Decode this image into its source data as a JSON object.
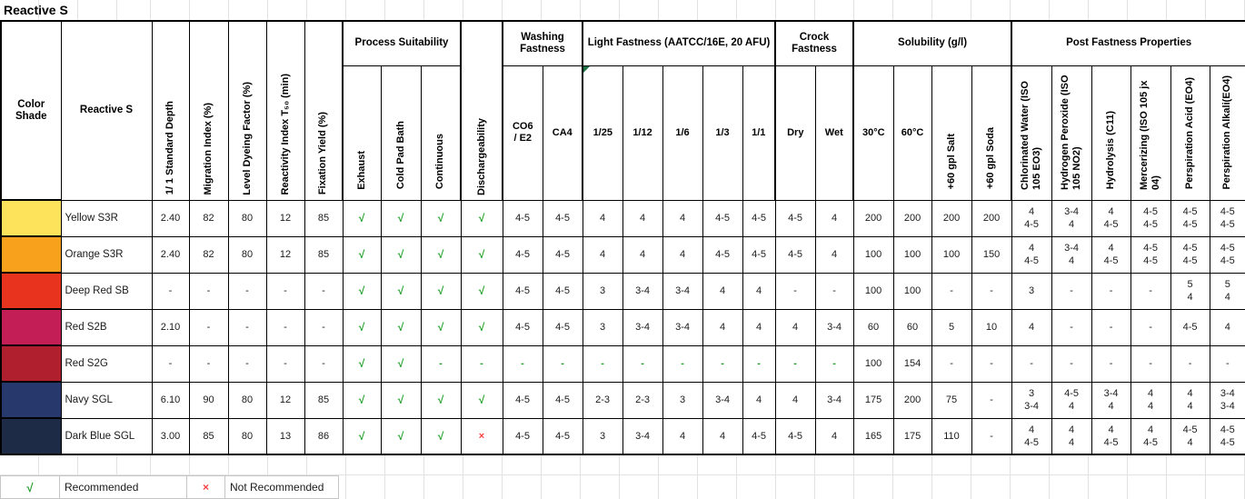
{
  "title": "Reactive S",
  "colors": {
    "check_green": "#22A02C",
    "x_red": "#F93E3E",
    "comment_triangle_green": "#1E7145",
    "gridline_gray": "#E2E2E2"
  },
  "icons": {
    "comment_indicator": "green triangle, top-left of 1/25 header cell"
  },
  "header": {
    "color_shade": "Color Shade",
    "reactive_s": "Reactive S",
    "metric_cols": [
      "1/ 1 Standard Depth",
      "Migration Index (%)",
      "Level Dyeing Factor (%)",
      "Reactivity Index T₅₀  (min)",
      "Fixation Yield (%)"
    ],
    "groups": {
      "process": {
        "label": "Process Suitability",
        "subs": [
          "Exhaust",
          "Cold Pad Bath",
          "Continuous"
        ]
      },
      "dischargeability": "Dischargeability",
      "washing": {
        "label": "Washing Fastness",
        "subs": [
          "CO6\n/ E2",
          "CA4"
        ]
      },
      "light": {
        "label": "Light Fastness (AATCC/16E, 20 AFU)",
        "subs": [
          "1/25",
          "1/12",
          "1/6",
          "1/3",
          "1/1"
        ]
      },
      "crock": {
        "label": "Crock Fastness",
        "subs": [
          "Dry",
          "Wet"
        ]
      },
      "solubility": {
        "label": "Solubility (g/l)",
        "subs": [
          "30°C",
          "60°C",
          "+60 gpl Salt",
          "+60 gpl Soda"
        ]
      },
      "post": {
        "label": "Post Fastness Properties",
        "subs": [
          "Chlorinated Water (ISO 105 EO3)",
          "Hydrogen Peroxide (ISO 105 NO2)",
          "Hydrolysis (C11)",
          "Mercerizing (ISO 105 jx 04)",
          "Perspiration Acid (EO4)",
          "Perspiration Alkali(EO4)"
        ]
      }
    }
  },
  "rows": [
    {
      "shade": "#FDE35B",
      "name": "Yellow S3R",
      "metrics": [
        "2.40",
        "82",
        "80",
        "12",
        "85"
      ],
      "suitability": [
        "√",
        "√",
        "√",
        "√"
      ],
      "fastness": [
        "4-5",
        "4-5",
        "4",
        "4",
        "4",
        "4-5",
        "4-5",
        "4-5",
        "4"
      ],
      "solubility": [
        "200",
        "200",
        "200",
        "200"
      ],
      "post": [
        "4\n4-5",
        "3-4\n4",
        "4\n4-5",
        "4-5\n4-5",
        "4-5\n4-5",
        "4-5\n4-5"
      ]
    },
    {
      "shade": "#F7A11C",
      "name": "Orange S3R",
      "metrics": [
        "2.40",
        "82",
        "80",
        "12",
        "85"
      ],
      "suitability": [
        "√",
        "√",
        "√",
        "√"
      ],
      "fastness": [
        "4-5",
        "4-5",
        "4",
        "4",
        "4",
        "4-5",
        "4-5",
        "4-5",
        "4"
      ],
      "solubility": [
        "100",
        "100",
        "100",
        "150"
      ],
      "post": [
        "4\n4-5",
        "3-4\n4",
        "4\n4-5",
        "4-5\n4-5",
        "4-5\n4-5",
        "4-5\n4-5"
      ]
    },
    {
      "shade": "#E8331F",
      "name": "Deep Red SB",
      "metrics": [
        "-",
        "-",
        "-",
        "-",
        "-"
      ],
      "suitability": [
        "√",
        "√",
        "√",
        "√"
      ],
      "fastness": [
        "4-5",
        "4-5",
        "3",
        "3-4",
        "3-4",
        "4",
        "4",
        "-",
        "-"
      ],
      "solubility": [
        "100",
        "100",
        "-",
        "-"
      ],
      "post": [
        "3",
        "-",
        "-",
        "-",
        "5\n4",
        "5\n4"
      ]
    },
    {
      "shade": "#C31E55",
      "name": "Red S2B",
      "metrics": [
        "2.10",
        "-",
        "-",
        "-",
        "-"
      ],
      "suitability": [
        "√",
        "√",
        "√",
        "√"
      ],
      "fastness": [
        "4-5",
        "4-5",
        "3",
        "3-4",
        "3-4",
        "4",
        "4",
        "4",
        "3-4"
      ],
      "solubility": [
        "60",
        "60",
        "5",
        "10"
      ],
      "post": [
        "4",
        "-",
        "-",
        "-",
        "4-5",
        "4"
      ]
    },
    {
      "shade": "#B01F2E",
      "name": "Red S2G",
      "metrics": [
        "-",
        "-",
        "-",
        "-",
        "-"
      ],
      "suitability": [
        "√",
        "√",
        {
          "v": "-",
          "green": true
        },
        {
          "v": "-",
          "green": true
        }
      ],
      "fastness": [
        {
          "v": "-",
          "green": true
        },
        {
          "v": "-",
          "green": true
        },
        {
          "v": "-",
          "green": true
        },
        {
          "v": "-",
          "green": true
        },
        {
          "v": "-",
          "green": true
        },
        {
          "v": "-",
          "green": true
        },
        {
          "v": "-",
          "green": true
        },
        {
          "v": "-",
          "green": true
        },
        {
          "v": "-",
          "green": true
        }
      ],
      "solubility": [
        "100",
        "154",
        "-",
        "-"
      ],
      "post": [
        "-",
        "-",
        "-",
        "-",
        "-",
        "-"
      ]
    },
    {
      "shade": "#27386C",
      "name": "Navy SGL",
      "metrics": [
        "6.10",
        "90",
        "80",
        "12",
        "85"
      ],
      "suitability": [
        "√",
        "√",
        "√",
        "√"
      ],
      "fastness": [
        "4-5",
        "4-5",
        "2-3",
        "2-3",
        "3",
        "3-4",
        "4",
        "4",
        "3-4"
      ],
      "solubility": [
        "175",
        "200",
        "75",
        "-"
      ],
      "post": [
        "3\n3-4",
        "4-5\n4",
        "3-4\n4",
        "4\n4",
        "4\n4",
        "3-4\n3-4"
      ]
    },
    {
      "shade": "#1D2B46",
      "name": "Dark Blue SGL",
      "metrics": [
        "3.00",
        "85",
        "80",
        "13",
        "86"
      ],
      "suitability": [
        "√",
        "√",
        "√",
        "×"
      ],
      "fastness": [
        "4-5",
        "4-5",
        "3",
        "3-4",
        "4",
        "4",
        "4-5",
        "4-5",
        "4"
      ],
      "solubility": [
        "165",
        "175",
        "110",
        "-"
      ],
      "post": [
        "4\n4-5",
        "4\n4",
        "4\n4-5",
        "4\n4-5",
        "4-5\n4",
        "4-5\n4-5"
      ]
    }
  ],
  "legend": {
    "check_symbol": "√",
    "check_label": "Recommended",
    "x_symbol": "×",
    "x_label": "Not Recommended"
  }
}
